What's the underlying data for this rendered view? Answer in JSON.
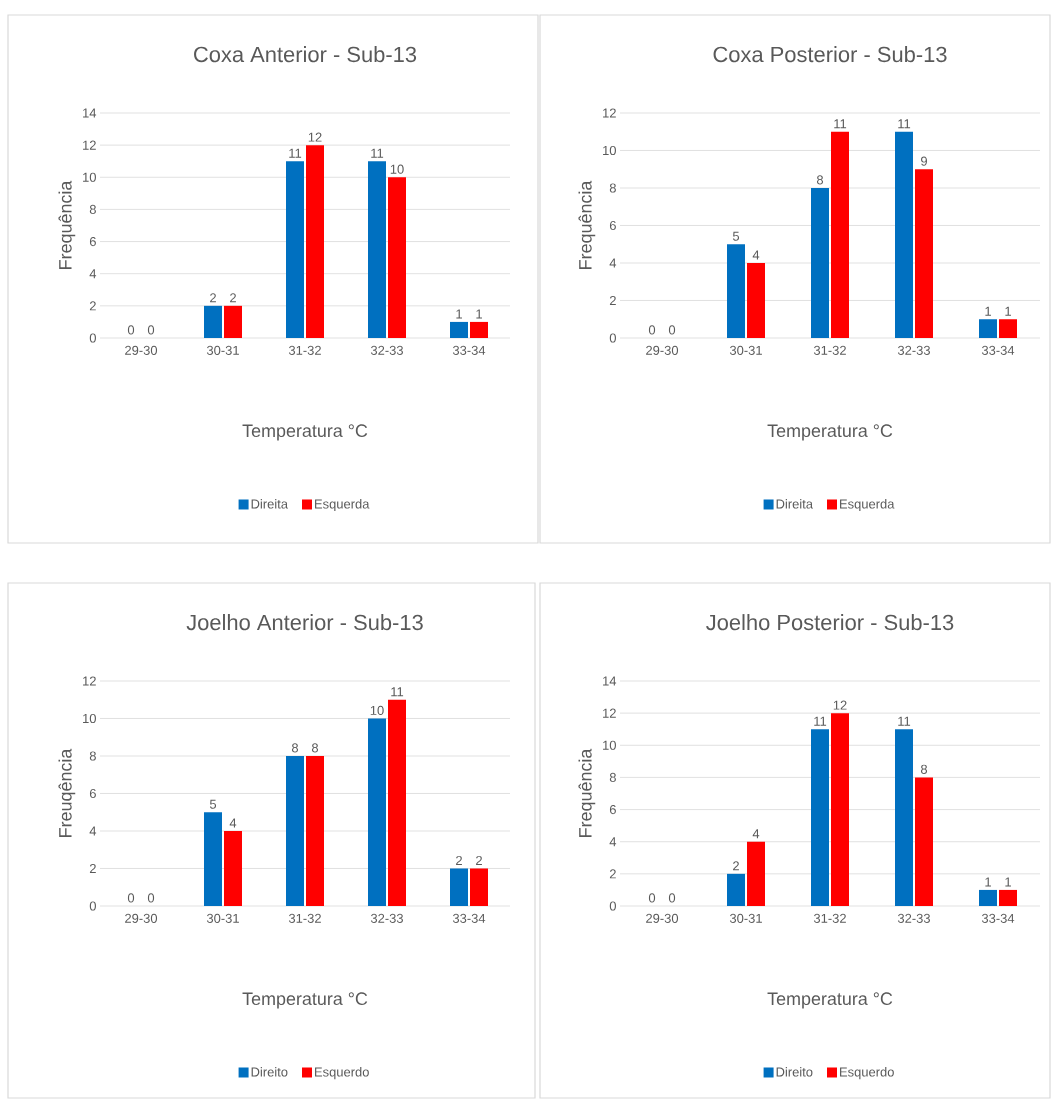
{
  "chart_data": [
    {
      "type": "bar",
      "title": "Coxa Anterior - Sub-13",
      "xlabel": "Temperatura °C",
      "ylabel": "Frequência",
      "categories": [
        "29-30",
        "30-31",
        "31-32",
        "32-33",
        "33-34"
      ],
      "series": [
        {
          "name": "Direita",
          "color": "#0070c0",
          "values": [
            0,
            2,
            11,
            11,
            1
          ]
        },
        {
          "name": "Esquerda",
          "color": "#ff0000",
          "values": [
            0,
            2,
            12,
            10,
            1
          ]
        }
      ],
      "ylim": [
        0,
        14
      ],
      "yticks": [
        0,
        2,
        4,
        6,
        8,
        10,
        12,
        14
      ],
      "grid": "y",
      "legend": "bottom",
      "data_labels": true
    },
    {
      "type": "bar",
      "title": "Coxa Posterior - Sub-13",
      "xlabel": "Temperatura °C",
      "ylabel": "Frequência",
      "categories": [
        "29-30",
        "30-31",
        "31-32",
        "32-33",
        "33-34"
      ],
      "series": [
        {
          "name": "Direita",
          "color": "#0070c0",
          "values": [
            0,
            5,
            8,
            11,
            1
          ]
        },
        {
          "name": "Esquerda",
          "color": "#ff0000",
          "values": [
            0,
            4,
            11,
            9,
            1
          ]
        }
      ],
      "ylim": [
        0,
        12
      ],
      "yticks": [
        0,
        2,
        4,
        6,
        8,
        10,
        12
      ],
      "grid": "y",
      "legend": "bottom",
      "data_labels": true
    },
    {
      "type": "bar",
      "title": "Joelho Anterior - Sub-13",
      "xlabel": "Temperatura °C",
      "ylabel": "Freuqência",
      "categories": [
        "29-30",
        "30-31",
        "31-32",
        "32-33",
        "33-34"
      ],
      "series": [
        {
          "name": "Direito",
          "color": "#0070c0",
          "values": [
            0,
            5,
            8,
            10,
            2
          ]
        },
        {
          "name": "Esquerdo",
          "color": "#ff0000",
          "values": [
            0,
            4,
            8,
            11,
            2
          ]
        }
      ],
      "ylim": [
        0,
        12
      ],
      "yticks": [
        0,
        2,
        4,
        6,
        8,
        10,
        12
      ],
      "grid": "y",
      "legend": "bottom",
      "data_labels": true
    },
    {
      "type": "bar",
      "title": "Joelho Posterior - Sub-13",
      "xlabel": "Temperatura °C",
      "ylabel": "Frequência",
      "categories": [
        "29-30",
        "30-31",
        "31-32",
        "32-33",
        "33-34"
      ],
      "series": [
        {
          "name": "Direito",
          "color": "#0070c0",
          "values": [
            0,
            2,
            11,
            11,
            1
          ]
        },
        {
          "name": "Esquerdo",
          "color": "#ff0000",
          "values": [
            0,
            4,
            12,
            8,
            1
          ]
        }
      ],
      "ylim": [
        0,
        14
      ],
      "yticks": [
        0,
        2,
        4,
        6,
        8,
        10,
        12,
        14
      ],
      "grid": "y",
      "legend": "bottom",
      "data_labels": true
    }
  ]
}
